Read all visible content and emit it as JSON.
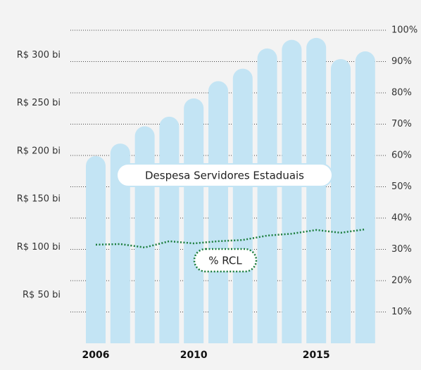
{
  "chart_data": {
    "type": "bar",
    "categories": [
      "2006",
      null,
      null,
      null,
      "2010",
      null,
      null,
      null,
      null,
      "2015",
      null,
      null
    ],
    "series": [
      {
        "name": "Despesa Servidores Estaduais",
        "color": "#c3e4f4",
        "values": [
          195,
          208,
          226,
          236,
          255,
          273,
          286,
          307,
          316,
          318,
          296,
          304
        ]
      },
      {
        "name": "% RCL",
        "type": "line",
        "axis": "y2",
        "color": "#1b7d3c",
        "values": [
          31.5,
          31.7,
          30.6,
          32.6,
          31.9,
          32.6,
          33,
          34.4,
          35,
          36.2,
          35.3,
          36.4
        ]
      }
    ],
    "ylim": [
      0,
      326
    ],
    "yticks": [
      {
        "value": 50,
        "label": "R$ 50 bi"
      },
      {
        "value": 100,
        "label": "R$ 100 bi"
      },
      {
        "value": 150,
        "label": "R$ 150 bi"
      },
      {
        "value": 200,
        "label": "R$ 200 bi"
      },
      {
        "value": 250,
        "label": "R$ 250 bi"
      },
      {
        "value": 300,
        "label": "R$ 300 bi"
      }
    ],
    "y2lim": [
      0,
      100
    ],
    "y2ticks": [
      {
        "value": 10,
        "label": "10%"
      },
      {
        "value": 20,
        "label": "20%"
      },
      {
        "value": 30,
        "label": "30%"
      },
      {
        "value": 40,
        "label": "40%"
      },
      {
        "value": 50,
        "label": "50%"
      },
      {
        "value": 60,
        "label": "60%"
      },
      {
        "value": 70,
        "label": "70%"
      },
      {
        "value": 80,
        "label": "80%"
      },
      {
        "value": 90,
        "label": "90%"
      },
      {
        "value": 100,
        "label": "100%"
      }
    ],
    "grid": true
  }
}
